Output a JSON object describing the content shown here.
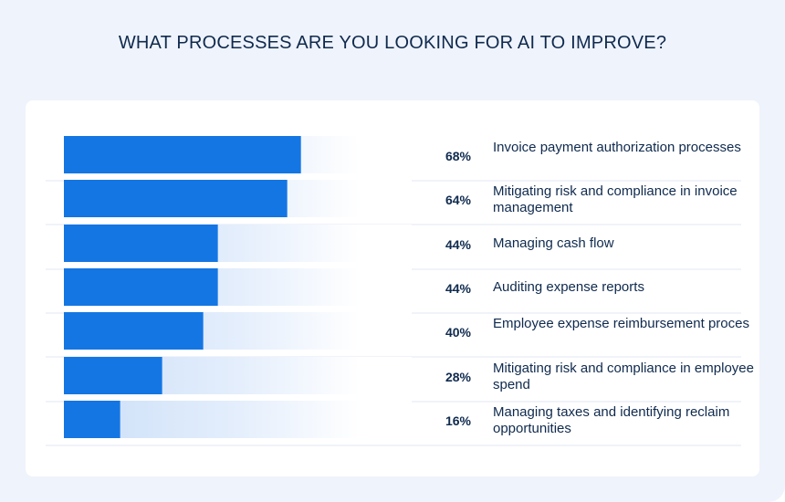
{
  "chart_data": {
    "type": "bar",
    "orientation": "horizontal",
    "title": "WHAT PROCESSES ARE YOU LOOKING FOR AI TO IMPROVE?",
    "xlabel": "",
    "ylabel": "",
    "xlim": [
      0,
      100
    ],
    "grid": false,
    "legend": "none",
    "categories": [
      "Invoice payment authorization processes",
      "Mitigating risk and compliance in invoice management",
      "Managing cash flow",
      "Auditing expense reports",
      "Employee expense reimbursement proces",
      "Mitigating risk and compliance in employee spend",
      "Managing taxes and identifying reclaim opportunities"
    ],
    "values": [
      68,
      64,
      44,
      44,
      40,
      28,
      16
    ],
    "value_labels": [
      "68%",
      "64%",
      "44%",
      "44%",
      "40%",
      "28%",
      "16%"
    ],
    "colors": {
      "bar": "#1476e3",
      "track": "#cadff8",
      "title": "#0f2a4e",
      "background": "#eff3fb"
    }
  }
}
